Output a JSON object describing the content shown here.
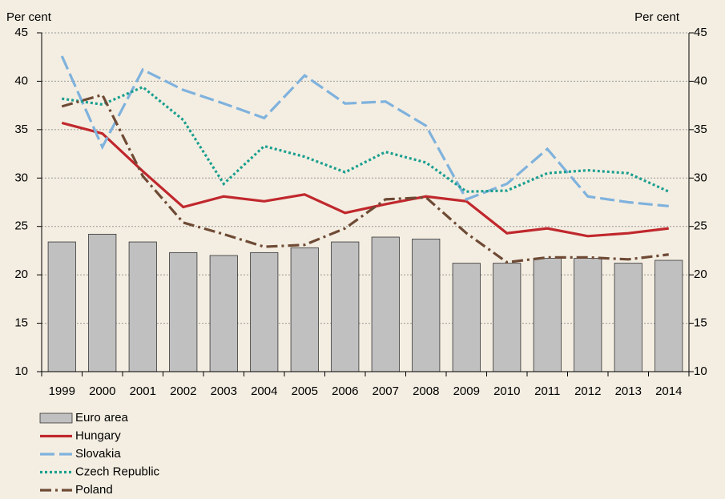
{
  "chart_data": {
    "type": "line",
    "y_label": "Per cent",
    "y2_label": "Per cent",
    "categories": [
      "1999",
      "2000",
      "2001",
      "2002",
      "2003",
      "2004",
      "2005",
      "2006",
      "2007",
      "2008",
      "2009",
      "2010",
      "2011",
      "2012",
      "2013",
      "2014"
    ],
    "series": [
      {
        "name": "Euro area",
        "type": "bar",
        "color": "#c0c0c0",
        "values": [
          23.4,
          24.2,
          23.4,
          22.3,
          22.0,
          22.3,
          22.8,
          23.4,
          23.9,
          23.7,
          21.2,
          21.2,
          21.7,
          21.7,
          21.2,
          21.5
        ]
      },
      {
        "name": "Hungary",
        "type": "line",
        "color": "#c0282d",
        "dash": "none",
        "values": [
          35.7,
          34.6,
          30.7,
          27.0,
          28.1,
          27.6,
          28.3,
          26.4,
          27.3,
          28.1,
          27.6,
          24.3,
          24.8,
          24.0,
          24.3,
          24.8
        ]
      },
      {
        "name": "Slovakia",
        "type": "line",
        "color": "#7fb2dd",
        "dash": "18 6",
        "values": [
          42.6,
          33.2,
          41.2,
          39.1,
          37.7,
          36.2,
          40.6,
          37.7,
          37.9,
          35.4,
          27.8,
          29.4,
          33.0,
          28.1,
          27.5,
          27.1
        ]
      },
      {
        "name": "Czech Republic",
        "type": "line",
        "color": "#1a9f8f",
        "dash": "3 3",
        "values": [
          38.2,
          37.6,
          39.4,
          36.0,
          29.4,
          33.3,
          32.2,
          30.6,
          32.7,
          31.6,
          28.6,
          28.7,
          30.5,
          30.8,
          30.5,
          28.6
        ]
      },
      {
        "name": "Poland",
        "type": "line",
        "color": "#6e4a35",
        "dash": "14 5 3 5",
        "values": [
          37.4,
          38.6,
          30.2,
          25.4,
          24.2,
          22.9,
          23.1,
          24.8,
          27.8,
          28.0,
          24.3,
          21.3,
          21.8,
          21.8,
          21.6,
          22.1
        ]
      }
    ],
    "ylim": [
      10,
      45
    ],
    "yticks": [
      10,
      15,
      20,
      25,
      30,
      35,
      40,
      45
    ],
    "y2lim": [
      10,
      45
    ],
    "y2ticks": [
      10,
      15,
      20,
      25,
      30,
      35,
      40,
      45
    ],
    "grid": true,
    "legend": "bottom-left"
  }
}
